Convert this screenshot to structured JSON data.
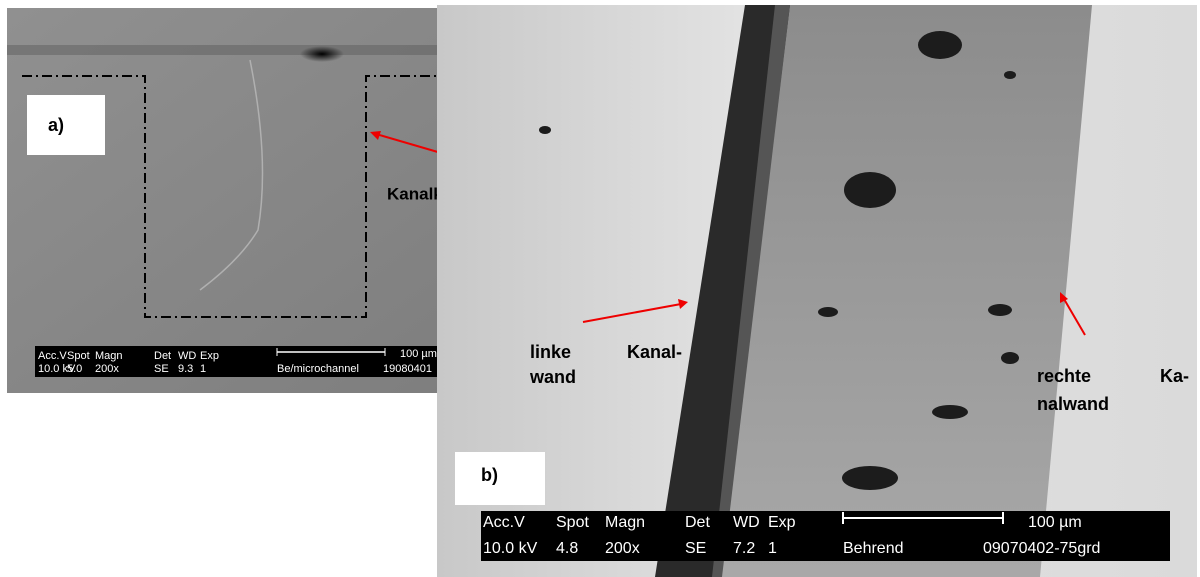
{
  "panels": [
    {
      "label": "a)",
      "annotations": [
        "Kanalkontur"
      ],
      "info": {
        "headers": [
          "Acc.V",
          "Spot",
          "Magn",
          "Det",
          "WD",
          "Exp"
        ],
        "values": [
          "10.0 kV",
          "5.0",
          "200x",
          "SE",
          "9.3",
          "1"
        ],
        "scale": "100 µm",
        "operator": "Be/microchannel",
        "id": "19080401"
      }
    },
    {
      "label": "b)",
      "annotations": [
        [
          "linke",
          "Kanal-",
          "wand"
        ],
        [
          "rechte",
          "Ka-",
          "nalwand"
        ]
      ],
      "info": {
        "headers": [
          "Acc.V",
          "Spot",
          "Magn",
          "Det",
          "WD",
          "Exp"
        ],
        "values": [
          "10.0 kV",
          "4.8",
          "200x",
          "SE",
          "7.2",
          "1"
        ],
        "scale": "100 µm",
        "operator": "Behrend",
        "id": "09070402-75grd"
      }
    }
  ]
}
